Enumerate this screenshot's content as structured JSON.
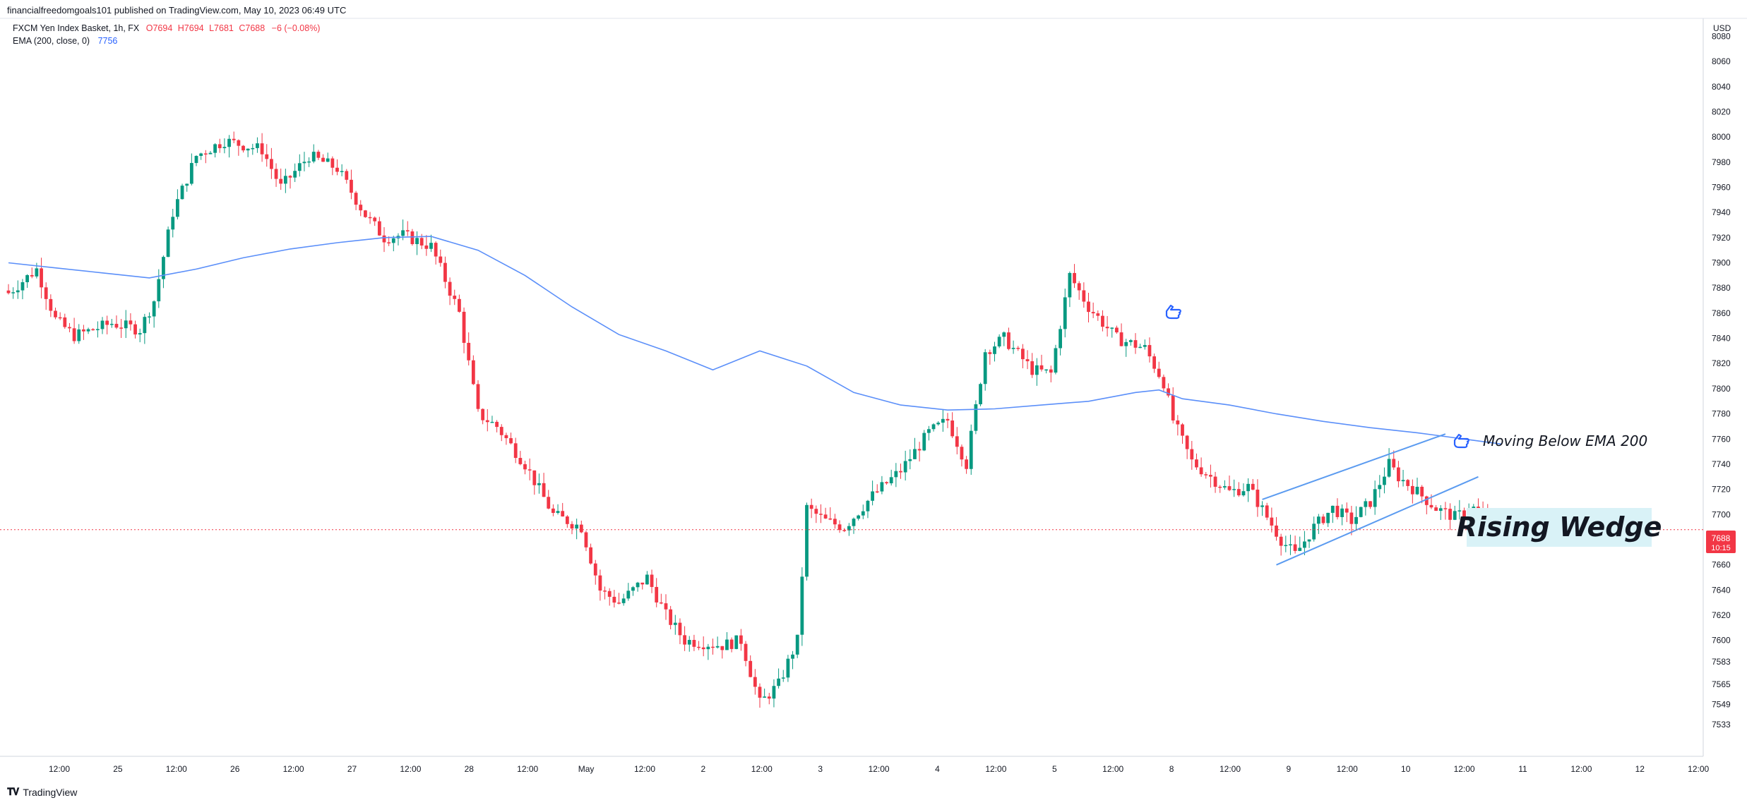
{
  "header": {
    "publisher_line": "financialfreedomgoals101 published on TradingView.com, May 10, 2023 06:49 UTC",
    "symbol_line": "FXCM Yen Index Basket, 1h, FX",
    "ohlc": [
      "O7694",
      "H7694",
      "L7681",
      "C7688",
      "−6 (−0.08%)"
    ],
    "indicator_label": "EMA (200, close, 0)",
    "indicator_value": "7756",
    "currency": "USD"
  },
  "price_label": {
    "price": "7688",
    "countdown": "10:15"
  },
  "annotations": {
    "ema_note": "Moving Below EMA 200",
    "pattern_label": "Rising Wedge"
  },
  "footer": {
    "brand": "TradingView"
  },
  "colors": {
    "up": "#089981",
    "down": "#f23645",
    "ema": "#5b8ff9",
    "wedge": "#5b9bf0",
    "label_bg": "#d9f2f7",
    "price_line": "#f23645",
    "icon": "#2962ff"
  },
  "icons": [
    "hand-pointer-icon",
    "hand-pointer-icon",
    "tradingview-logo-icon"
  ],
  "chart_data": {
    "type": "candlestick",
    "symbol": "FXCM Yen Index Basket",
    "timeframe": "1h",
    "ylim": [
      7524,
      8071
    ],
    "y_ticks": [
      7533,
      7549,
      7565,
      7583,
      7600,
      7620,
      7640,
      7660,
      7680,
      7700,
      7720,
      7740,
      7760,
      7780,
      7800,
      7820,
      7840,
      7860,
      7880,
      7900,
      7920,
      7940,
      7960,
      7980,
      8000,
      8020,
      8040,
      8060,
      8080
    ],
    "x_tick_labels": [
      "12:00",
      "25",
      "12:00",
      "26",
      "12:00",
      "27",
      "12:00",
      "28",
      "12:00",
      "May",
      "12:00",
      "2",
      "12:00",
      "3",
      "12:00",
      "4",
      "12:00",
      "5",
      "12:00",
      "8",
      "12:00",
      "9",
      "12:00",
      "10",
      "12:00",
      "11",
      "12:00",
      "12",
      "12:00"
    ],
    "series": [
      {
        "name": "price",
        "anchors": [
          [
            0,
            7876
          ],
          [
            6,
            7895
          ],
          [
            10,
            7855
          ],
          [
            14,
            7842
          ],
          [
            22,
            7852
          ],
          [
            28,
            7847
          ],
          [
            31,
            7870
          ],
          [
            35,
            7940
          ],
          [
            40,
            7985
          ],
          [
            46,
            7997
          ],
          [
            54,
            7990
          ],
          [
            58,
            7960
          ],
          [
            64,
            7985
          ],
          [
            70,
            7975
          ],
          [
            76,
            7938
          ],
          [
            80,
            7920
          ],
          [
            84,
            7922
          ],
          [
            90,
            7913
          ],
          [
            96,
            7860
          ],
          [
            100,
            7780
          ],
          [
            104,
            7770
          ],
          [
            110,
            7740
          ],
          [
            116,
            7700
          ],
          [
            122,
            7690
          ],
          [
            126,
            7640
          ],
          [
            130,
            7630
          ],
          [
            136,
            7650
          ],
          [
            140,
            7620
          ],
          [
            144,
            7600
          ],
          [
            152,
            7596
          ],
          [
            156,
            7600
          ],
          [
            160,
            7550
          ],
          [
            164,
            7565
          ],
          [
            168,
            7600
          ],
          [
            170,
            7705
          ],
          [
            174,
            7695
          ],
          [
            178,
            7690
          ],
          [
            184,
            7715
          ],
          [
            190,
            7735
          ],
          [
            196,
            7765
          ],
          [
            200,
            7775
          ],
          [
            204,
            7740
          ],
          [
            208,
            7830
          ],
          [
            212,
            7840
          ],
          [
            218,
            7815
          ],
          [
            222,
            7812
          ],
          [
            226,
            7890
          ],
          [
            230,
            7865
          ],
          [
            236,
            7840
          ],
          [
            242,
            7832
          ],
          [
            246,
            7805
          ],
          [
            248,
            7775
          ],
          [
            252,
            7742
          ],
          [
            256,
            7730
          ],
          [
            260,
            7718
          ],
          [
            264,
            7722
          ],
          [
            268,
            7698
          ],
          [
            271,
            7680
          ],
          [
            274,
            7668
          ],
          [
            278,
            7690
          ],
          [
            282,
            7705
          ],
          [
            286,
            7695
          ],
          [
            290,
            7710
          ],
          [
            294,
            7740
          ],
          [
            296,
            7730
          ],
          [
            300,
            7718
          ],
          [
            304,
            7705
          ],
          [
            308,
            7698
          ],
          [
            312,
            7705
          ],
          [
            316,
            7692
          ],
          [
            318,
            7688
          ]
        ]
      },
      {
        "name": "EMA (200, close, 0)",
        "x": [
          0,
          10,
          20,
          30,
          40,
          50,
          60,
          70,
          80,
          90,
          100,
          110,
          120,
          130,
          140,
          150,
          160,
          170,
          180,
          190,
          200,
          210,
          220,
          230,
          240,
          245,
          250,
          260,
          270,
          280,
          290,
          300,
          310,
          318
        ],
        "values": [
          7900,
          7896,
          7892,
          7888,
          7895,
          7904,
          7911,
          7916,
          7920,
          7921,
          7910,
          7890,
          7865,
          7843,
          7830,
          7815,
          7830,
          7818,
          7797,
          7787,
          7783,
          7784,
          7787,
          7790,
          7797,
          7799,
          7792,
          7787,
          7780,
          7774,
          7769,
          7765,
          7760,
          7756
        ]
      }
    ],
    "wedge_upper": [
      [
        267,
        7712
      ],
      [
        306,
        7764
      ]
    ],
    "wedge_lower": [
      [
        270,
        7660
      ],
      [
        313,
        7730
      ]
    ],
    "last_price": 7688,
    "x_is_hourly_bar_index": true
  }
}
